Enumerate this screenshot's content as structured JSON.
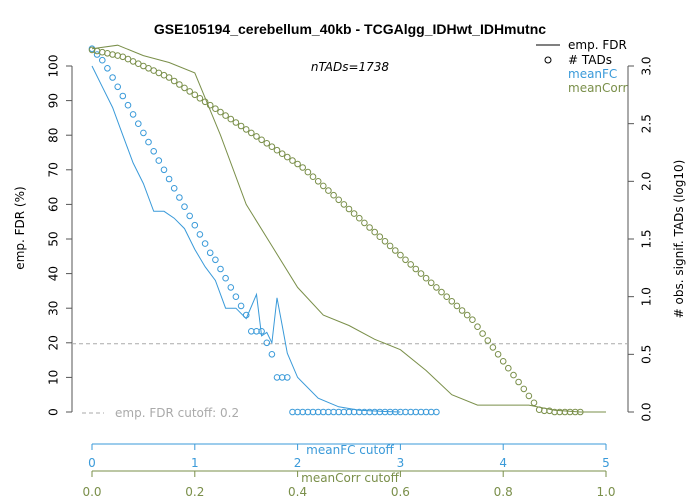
{
  "chart_data": {
    "type": "line",
    "title": "GSE105194_cerebellum_40kb - TCGAlgg_IDHwt_IDHmutnc",
    "annotation": "nTADs=1738",
    "ylabel_left": "emp. FDR (%)",
    "ylabel_right": "# obs. signif. TADs (log10)",
    "ylim_left": [
      0,
      100
    ],
    "ylim_right": [
      0,
      3
    ],
    "yticks_left": [
      "0",
      "10",
      "20",
      "30",
      "40",
      "50",
      "60",
      "70",
      "80",
      "90",
      "100"
    ],
    "yticks_right": [
      "0.0",
      "0.5",
      "1.0",
      "1.5",
      "2.0",
      "2.5",
      "3.0"
    ],
    "x_axes": [
      {
        "label": "meanFC cutoff",
        "color": "#3a9ad9",
        "ticks": [
          "0",
          "1",
          "2",
          "3",
          "4",
          "5"
        ],
        "range": [
          0,
          5
        ]
      },
      {
        "label": "meanCorr cutoff",
        "color": "#7a8f4a",
        "ticks": [
          "0.0",
          "0.2",
          "0.4",
          "0.6",
          "0.8",
          "1.0"
        ],
        "range": [
          0,
          1
        ]
      }
    ],
    "cutoff": {
      "value": 20,
      "label": "emp. FDR cutoff: 0.2"
    },
    "legend": {
      "position": "top-right",
      "entries": [
        {
          "label": "emp. FDR",
          "symbol": "line",
          "color": "#000000"
        },
        {
          "label": "# TADs",
          "symbol": "circle",
          "color": "#000000"
        },
        {
          "label": "meanFC",
          "symbol": "none",
          "color": "#3a9ad9"
        },
        {
          "label": "meanCorr",
          "symbol": "none",
          "color": "#7a8f4a"
        }
      ]
    },
    "series": [
      {
        "axis": "meanFC",
        "metric": "emp. FDR",
        "color": "#3a9ad9",
        "x": [
          0,
          0.1,
          0.2,
          0.3,
          0.4,
          0.5,
          0.6,
          0.7,
          0.8,
          0.9,
          1.0,
          1.1,
          1.2,
          1.3,
          1.4,
          1.5,
          1.6,
          1.65,
          1.7,
          1.75,
          1.8,
          1.85,
          1.9,
          2.0,
          2.2,
          2.4,
          2.6,
          2.8,
          3.0
        ],
        "y": [
          100,
          94,
          88,
          80,
          72,
          66,
          58,
          58,
          56,
          53,
          47,
          42,
          38,
          30,
          30,
          27,
          34,
          22,
          23,
          20,
          33,
          25,
          17,
          10,
          4,
          1.5,
          0.5,
          0.2,
          0
        ]
      },
      {
        "axis": "meanFC",
        "metric": "# TADs",
        "color": "#3a9ad9",
        "x": [
          0,
          0.05,
          0.1,
          0.15,
          0.2,
          0.25,
          0.3,
          0.35,
          0.4,
          0.45,
          0.5,
          0.55,
          0.6,
          0.65,
          0.7,
          0.75,
          0.8,
          0.85,
          0.9,
          0.95,
          1.0,
          1.05,
          1.1,
          1.15,
          1.2,
          1.25,
          1.3,
          1.35,
          1.4,
          1.45,
          1.5,
          1.55,
          1.6,
          1.65,
          1.7,
          1.75,
          1.8,
          1.85,
          1.9,
          1.95,
          2.0,
          2.05,
          2.1,
          2.15,
          2.2,
          2.25,
          2.3,
          2.35,
          2.4,
          2.45,
          2.5,
          2.55,
          2.6,
          2.65,
          2.7,
          2.75,
          2.8,
          2.85,
          2.9,
          2.95,
          3.0,
          3.05,
          3.1,
          3.15,
          3.2,
          3.25,
          3.3,
          3.35
        ],
        "y": [
          3.15,
          3.1,
          3.05,
          2.98,
          2.9,
          2.82,
          2.74,
          2.66,
          2.58,
          2.5,
          2.42,
          2.34,
          2.26,
          2.18,
          2.1,
          2.02,
          1.94,
          1.86,
          1.78,
          1.7,
          1.62,
          1.54,
          1.46,
          1.38,
          1.32,
          1.24,
          1.16,
          1.08,
          1.0,
          0.92,
          0.84,
          0.7,
          0.7,
          0.7,
          0.6,
          0.5,
          0.3,
          0.3,
          0.3,
          0,
          0,
          0,
          0,
          0,
          0,
          0,
          0,
          0,
          0,
          0,
          0,
          0,
          0,
          0,
          0,
          0,
          0,
          0,
          0,
          0,
          0,
          0,
          0,
          0,
          0,
          0,
          0,
          0
        ]
      },
      {
        "axis": "meanCorr",
        "metric": "emp. FDR",
        "color": "#7a8f4a",
        "x": [
          0,
          0.05,
          0.1,
          0.15,
          0.2,
          0.25,
          0.3,
          0.35,
          0.4,
          0.45,
          0.5,
          0.55,
          0.6,
          0.65,
          0.7,
          0.75,
          0.8,
          0.85,
          0.9,
          0.95,
          1.0
        ],
        "y": [
          105,
          106,
          103,
          101,
          98,
          80,
          60,
          48,
          36,
          28,
          25,
          21,
          18,
          12,
          5,
          2,
          2,
          2,
          0.5,
          0,
          0
        ]
      },
      {
        "axis": "meanCorr",
        "metric": "# TADs",
        "color": "#7a8f4a",
        "x": [
          0,
          0.01,
          0.02,
          0.03,
          0.04,
          0.05,
          0.06,
          0.07,
          0.08,
          0.09,
          0.1,
          0.11,
          0.12,
          0.13,
          0.14,
          0.15,
          0.16,
          0.17,
          0.18,
          0.19,
          0.2,
          0.21,
          0.22,
          0.23,
          0.24,
          0.25,
          0.26,
          0.27,
          0.28,
          0.29,
          0.3,
          0.31,
          0.32,
          0.33,
          0.34,
          0.35,
          0.36,
          0.37,
          0.38,
          0.39,
          0.4,
          0.41,
          0.42,
          0.43,
          0.44,
          0.45,
          0.46,
          0.47,
          0.48,
          0.49,
          0.5,
          0.51,
          0.52,
          0.53,
          0.54,
          0.55,
          0.56,
          0.57,
          0.58,
          0.59,
          0.6,
          0.61,
          0.62,
          0.63,
          0.64,
          0.65,
          0.66,
          0.67,
          0.68,
          0.69,
          0.7,
          0.71,
          0.72,
          0.73,
          0.74,
          0.75,
          0.76,
          0.77,
          0.78,
          0.79,
          0.8,
          0.81,
          0.82,
          0.83,
          0.84,
          0.85,
          0.86,
          0.87,
          0.88,
          0.89,
          0.9,
          0.91,
          0.92,
          0.93,
          0.94,
          0.95
        ],
        "y": [
          3.14,
          3.13,
          3.12,
          3.11,
          3.1,
          3.09,
          3.08,
          3.06,
          3.04,
          3.02,
          3.0,
          2.98,
          2.96,
          2.94,
          2.92,
          2.9,
          2.87,
          2.84,
          2.81,
          2.78,
          2.75,
          2.72,
          2.69,
          2.66,
          2.63,
          2.6,
          2.57,
          2.54,
          2.51,
          2.48,
          2.45,
          2.42,
          2.39,
          2.36,
          2.33,
          2.3,
          2.27,
          2.24,
          2.21,
          2.18,
          2.15,
          2.12,
          2.08,
          2.04,
          2.0,
          1.96,
          1.92,
          1.88,
          1.84,
          1.8,
          1.76,
          1.72,
          1.68,
          1.64,
          1.6,
          1.56,
          1.52,
          1.48,
          1.44,
          1.4,
          1.36,
          1.32,
          1.28,
          1.24,
          1.2,
          1.16,
          1.12,
          1.08,
          1.04,
          1.0,
          0.96,
          0.92,
          0.88,
          0.84,
          0.8,
          0.74,
          0.68,
          0.62,
          0.56,
          0.5,
          0.44,
          0.38,
          0.32,
          0.26,
          0.2,
          0.14,
          0.08,
          0.02,
          0.01,
          0.01,
          0,
          0,
          0,
          0,
          0,
          0
        ]
      }
    ]
  }
}
